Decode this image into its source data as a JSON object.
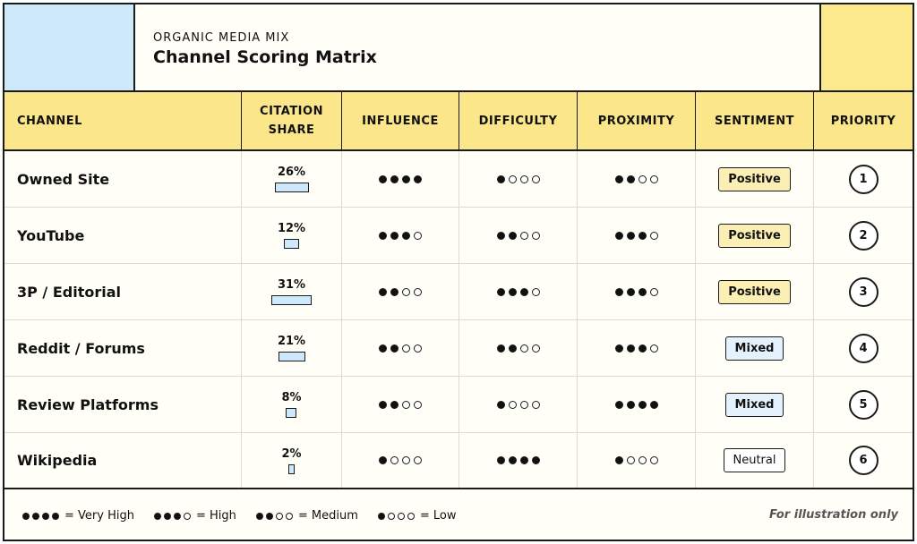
{
  "header": {
    "eyebrow": "ORGANIC MEDIA MIX",
    "title": "Channel Scoring Matrix"
  },
  "columns": [
    "CHANNEL",
    "CITATION SHARE",
    "INFLUENCE",
    "DIFFICULTY",
    "PROXIMITY",
    "SENTIMENT",
    "PRIORITY"
  ],
  "rows": [
    {
      "channel": "Owned Site",
      "citation_share": "26%",
      "share_value": 26,
      "influence": 4,
      "difficulty": 1,
      "proximity": 2,
      "sentiment": "Positive",
      "sentiment_kind": "pos",
      "priority": "1"
    },
    {
      "channel": "YouTube",
      "citation_share": "12%",
      "share_value": 12,
      "influence": 3,
      "difficulty": 2,
      "proximity": 3,
      "sentiment": "Positive",
      "sentiment_kind": "pos",
      "priority": "2"
    },
    {
      "channel": "3P / Editorial",
      "citation_share": "31%",
      "share_value": 31,
      "influence": 2,
      "difficulty": 3,
      "proximity": 3,
      "sentiment": "Positive",
      "sentiment_kind": "pos",
      "priority": "3"
    },
    {
      "channel": "Reddit / Forums",
      "citation_share": "21%",
      "share_value": 21,
      "influence": 2,
      "difficulty": 2,
      "proximity": 3,
      "sentiment": "Mixed",
      "sentiment_kind": "mix",
      "priority": "4"
    },
    {
      "channel": "Review Platforms",
      "citation_share": "8%",
      "share_value": 8,
      "influence": 2,
      "difficulty": 1,
      "proximity": 4,
      "sentiment": "Mixed",
      "sentiment_kind": "mix",
      "priority": "5"
    },
    {
      "channel": "Wikipedia",
      "citation_share": "2%",
      "share_value": 2,
      "influence": 1,
      "difficulty": 4,
      "proximity": 1,
      "sentiment": "Neutral",
      "sentiment_kind": "neu",
      "priority": "6"
    }
  ],
  "legend": [
    {
      "filled": 4,
      "label": "= Very High"
    },
    {
      "filled": 3,
      "label": "= High"
    },
    {
      "filled": 2,
      "label": "= Medium"
    },
    {
      "filled": 1,
      "label": "= Low"
    }
  ],
  "footnote": "For illustration only",
  "colors": {
    "accent_yellow": "#fbe68a",
    "accent_blue": "#cde9fb"
  }
}
